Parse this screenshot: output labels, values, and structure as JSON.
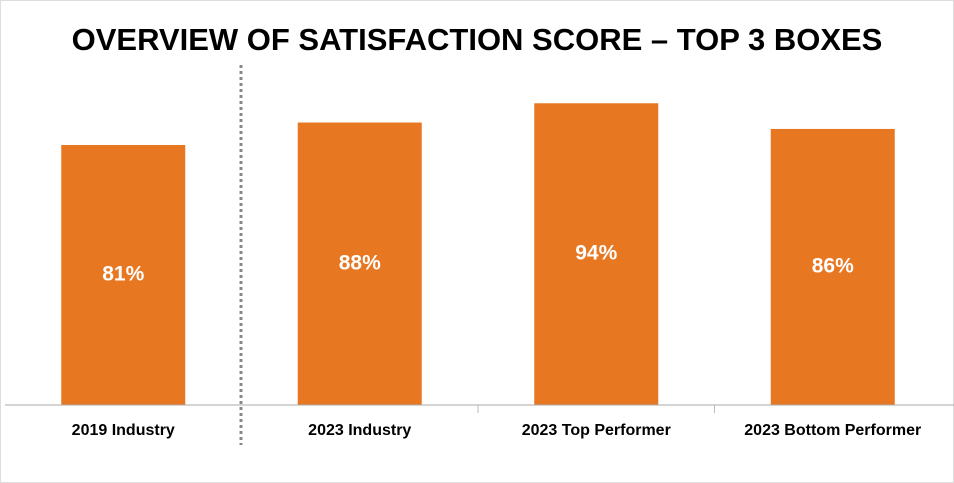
{
  "chart_data": {
    "type": "bar",
    "title": "OVERVIEW OF SATISFACTION SCORE – TOP 3 BOXES",
    "categories": [
      "2019 Industry",
      "2023 Industry",
      "2023 Top Performer",
      "2023 Bottom Performer"
    ],
    "values": [
      81,
      88,
      94,
      86
    ],
    "value_labels": [
      "81%",
      "88%",
      "94%",
      "86%"
    ],
    "color": "#e87722",
    "ylim": [
      0,
      100
    ]
  }
}
